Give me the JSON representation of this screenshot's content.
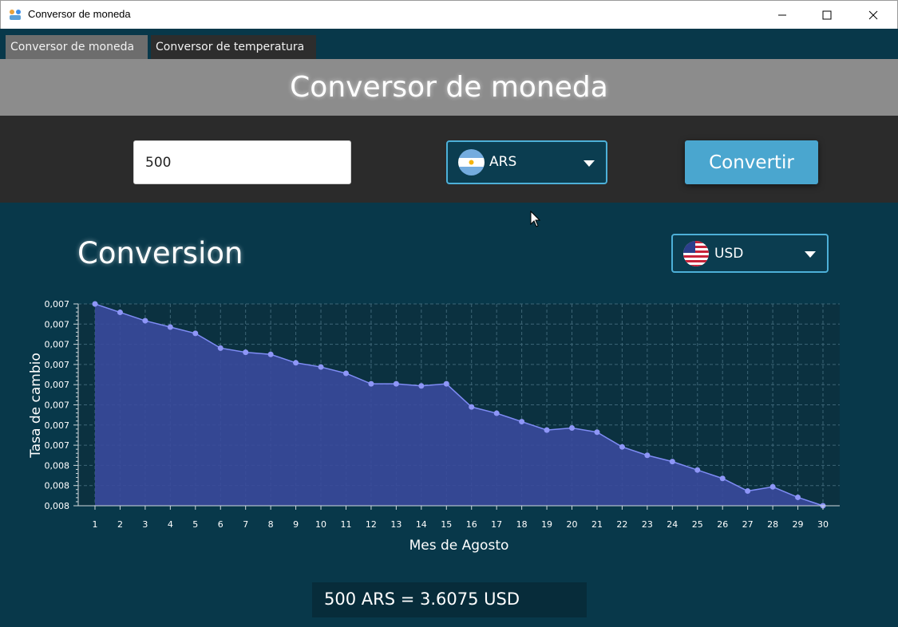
{
  "window": {
    "title": "Conversor de moneda"
  },
  "tabs": [
    {
      "label": "Conversor de moneda",
      "active": true
    },
    {
      "label": "Conversor de temperatura",
      "active": false
    }
  ],
  "header": {
    "title": "Conversor de moneda"
  },
  "controls": {
    "amount_value": "500",
    "from_currency": {
      "label": "ARS",
      "icon": "argentina-flag-icon"
    },
    "convert_label": "Convertir"
  },
  "conversion": {
    "title": "Conversion",
    "to_currency": {
      "label": "USD",
      "icon": "usa-flag-icon"
    }
  },
  "result": {
    "text": "500 ARS = 3.6075 USD"
  },
  "colors": {
    "background": "#08384a",
    "accent": "#4aa6cf",
    "header_band": "#8c8c8c",
    "controls_band": "#2b2b2b",
    "area_fill": "#3a4a9e",
    "line": "#7f8cf5"
  },
  "chart_data": {
    "type": "area",
    "xlabel": "Mes de Agosto",
    "ylabel": "Tasa de cambio",
    "x": [
      1,
      2,
      3,
      4,
      5,
      6,
      7,
      8,
      9,
      10,
      11,
      12,
      13,
      14,
      15,
      16,
      17,
      18,
      19,
      20,
      21,
      22,
      23,
      24,
      25,
      26,
      27,
      28,
      29,
      30
    ],
    "values": [
      0.008,
      0.00796,
      0.00792,
      0.00789,
      0.00786,
      0.00779,
      0.00777,
      0.00776,
      0.00772,
      0.0077,
      0.00767,
      0.00762,
      0.00762,
      0.00761,
      0.00762,
      0.00751,
      0.00748,
      0.00744,
      0.0074,
      0.00741,
      0.00739,
      0.00732,
      0.00728,
      0.00725,
      0.00721,
      0.00717,
      0.00711,
      0.00713,
      0.00708,
      0.00704
    ],
    "ylim": [
      0.00704,
      0.008
    ],
    "y_tick_labels": [
      "0,008",
      "0,008",
      "0,008",
      "0,007",
      "0,007",
      "0,007",
      "0,007",
      "0,007",
      "0,007",
      "0,007",
      "0,007"
    ],
    "x_tick_labels": [
      "1",
      "2",
      "3",
      "4",
      "5",
      "6",
      "7",
      "8",
      "9",
      "10",
      "11",
      "12",
      "13",
      "14",
      "15",
      "16",
      "17",
      "18",
      "19",
      "20",
      "21",
      "22",
      "23",
      "24",
      "25",
      "26",
      "27",
      "28",
      "29",
      "30"
    ],
    "grid": true,
    "legend": "none"
  }
}
